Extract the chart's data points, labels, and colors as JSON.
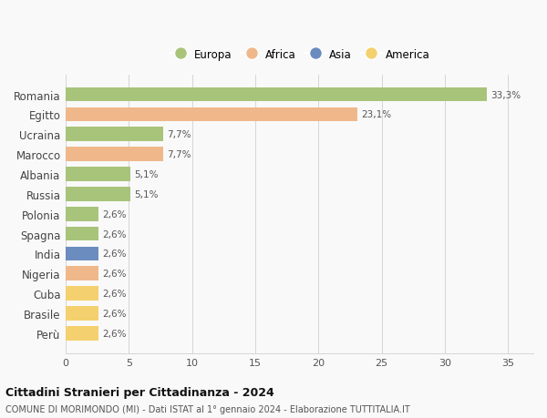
{
  "countries": [
    "Romania",
    "Egitto",
    "Ucraina",
    "Marocco",
    "Albania",
    "Russia",
    "Polonia",
    "Spagna",
    "India",
    "Nigeria",
    "Cuba",
    "Brasile",
    "Perù"
  ],
  "values": [
    33.3,
    23.1,
    7.7,
    7.7,
    5.1,
    5.1,
    2.6,
    2.6,
    2.6,
    2.6,
    2.6,
    2.6,
    2.6
  ],
  "labels": [
    "33,3%",
    "23,1%",
    "7,7%",
    "7,7%",
    "5,1%",
    "5,1%",
    "2,6%",
    "2,6%",
    "2,6%",
    "2,6%",
    "2,6%",
    "2,6%",
    "2,6%"
  ],
  "colors": [
    "#a8c47a",
    "#f0b88a",
    "#a8c47a",
    "#f0b88a",
    "#a8c47a",
    "#a8c47a",
    "#a8c47a",
    "#a8c47a",
    "#6b8cbf",
    "#f0b88a",
    "#f5d06e",
    "#f5d06e",
    "#f5d06e"
  ],
  "legend_labels": [
    "Europa",
    "Africa",
    "Asia",
    "America"
  ],
  "legend_colors": [
    "#a8c47a",
    "#f0b88a",
    "#6b8cbf",
    "#f5d06e"
  ],
  "xlim": [
    0,
    37
  ],
  "xticks": [
    0,
    5,
    10,
    15,
    20,
    25,
    30,
    35
  ],
  "title": "Cittadini Stranieri per Cittadinanza - 2024",
  "subtitle": "COMUNE DI MORIMONDO (MI) - Dati ISTAT al 1° gennaio 2024 - Elaborazione TUTTITALIA.IT",
  "background_color": "#f9f9f9",
  "grid_color": "#d5d5d5",
  "bar_height": 0.72
}
